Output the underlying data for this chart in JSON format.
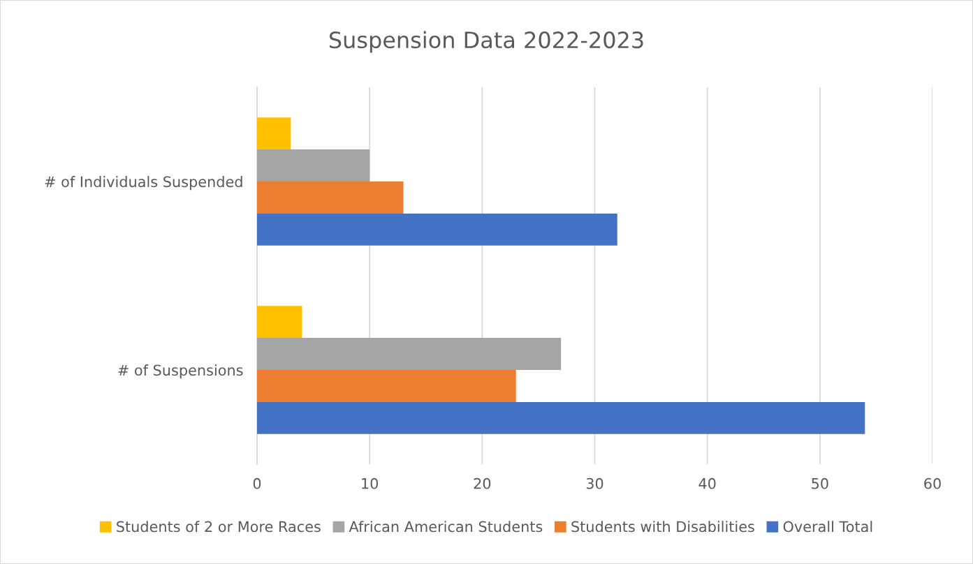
{
  "chart_data": {
    "type": "bar",
    "orientation": "horizontal",
    "title": "Suspension Data 2022-2023",
    "categories": [
      "# of Individuals Suspended",
      "# of Suspensions"
    ],
    "series": [
      {
        "name": "Students of 2 or More Races",
        "color": "#ffc000",
        "values": [
          3,
          4
        ]
      },
      {
        "name": "African American Students",
        "color": "#a5a5a5",
        "values": [
          10,
          27
        ]
      },
      {
        "name": "Students with Disabilities",
        "color": "#ed7d31",
        "values": [
          13,
          23
        ]
      },
      {
        "name": "Overall Total",
        "color": "#4472c4",
        "values": [
          32,
          54
        ]
      }
    ],
    "xlim": [
      0,
      60
    ],
    "xticks": [
      0,
      10,
      20,
      30,
      40,
      50,
      60
    ],
    "grid": "x",
    "legend": "bottom"
  }
}
